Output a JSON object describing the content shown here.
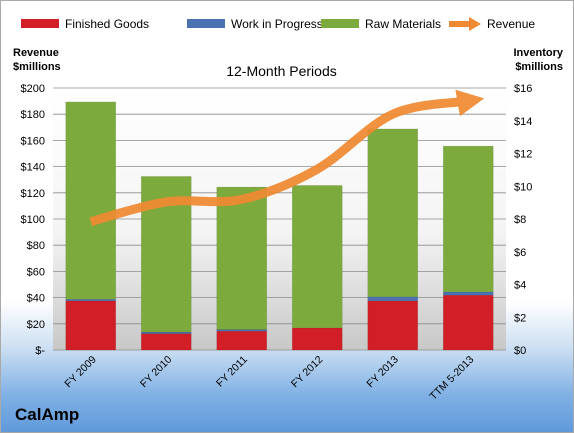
{
  "company": "CalAmp",
  "colors": {
    "finished_goods": "#d21f27",
    "work_in_progress": "#4a72b0",
    "raw_materials": "#7daa3c",
    "revenue": "#f08a32"
  },
  "chart_data": {
    "type": "bar",
    "title": "12-Month Periods",
    "categories": [
      "FY 2009",
      "FY 2010",
      "FY 2011",
      "FY 2012",
      "FY 2013",
      "TTM 5-2013"
    ],
    "series": [
      {
        "name": "Finished Goods",
        "axis": "right",
        "stack": "inventory",
        "values": [
          3.0,
          1.0,
          1.15,
          1.35,
          3.0,
          3.35
        ]
      },
      {
        "name": "Work in Progress",
        "axis": "right",
        "stack": "inventory",
        "values": [
          0.1,
          0.1,
          0.1,
          0.0,
          0.25,
          0.2
        ]
      },
      {
        "name": "Raw Materials",
        "axis": "right",
        "stack": "inventory",
        "values": [
          12.05,
          9.5,
          8.7,
          8.7,
          10.25,
          8.9
        ]
      },
      {
        "name": "Revenue",
        "axis": "left",
        "type": "line",
        "values": [
          98,
          113,
          115,
          138,
          180,
          190
        ]
      }
    ],
    "y_left": {
      "label_line1": "Revenue",
      "label_line2": "$millions",
      "ylim": [
        0,
        200
      ],
      "ticks": [
        "$-",
        "$20",
        "$40",
        "$60",
        "$80",
        "$100",
        "$120",
        "$140",
        "$160",
        "$180",
        "$200"
      ]
    },
    "y_right": {
      "label_line1": "Inventory",
      "label_line2": "$millions",
      "ylim": [
        0,
        16
      ],
      "ticks": [
        "$0",
        "$2",
        "$4",
        "$6",
        "$8",
        "$10",
        "$12",
        "$14",
        "$16"
      ]
    },
    "legend_position": "top",
    "grid": true
  }
}
